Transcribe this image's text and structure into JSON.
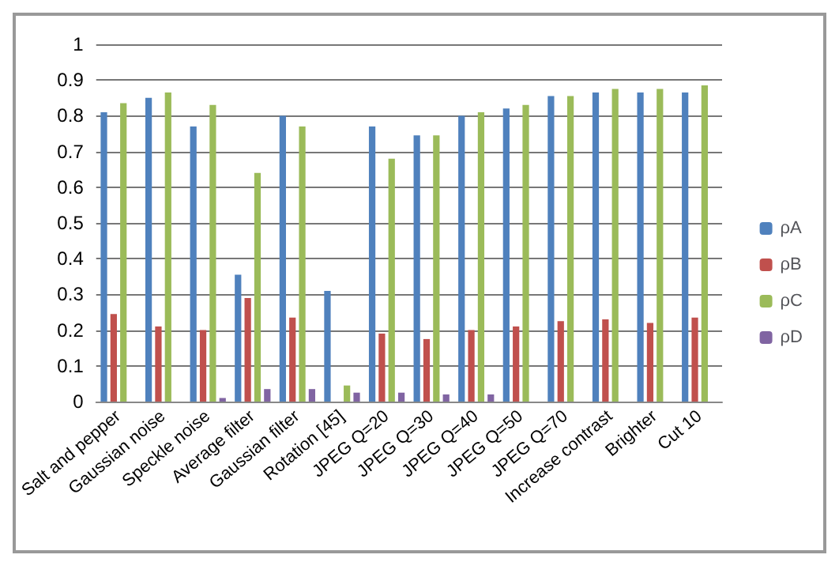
{
  "chart_data": {
    "type": "bar",
    "categories": [
      "Salt and pepper",
      "Gaussian noise",
      "Speckle noise",
      "Average filter",
      "Gaussian filter",
      "Rotation [45]",
      "JPEG Q=20",
      "JPEG Q=30",
      "JPEG Q=40",
      "JPEG Q=50",
      "JPEG Q=70",
      "Increase contrast",
      "Brighter",
      "Cut 10"
    ],
    "series": [
      {
        "name": "ρA",
        "color": "#4f81bd",
        "values": [
          0.81,
          0.85,
          0.77,
          0.355,
          0.8,
          0.31,
          0.77,
          0.745,
          0.8,
          0.82,
          0.855,
          0.865,
          0.865,
          0.865
        ]
      },
      {
        "name": "ρB",
        "color": "#c0504d",
        "values": [
          0.245,
          0.21,
          0.2,
          0.29,
          0.235,
          0,
          0.19,
          0.175,
          0.2,
          0.21,
          0.225,
          0.23,
          0.22,
          0.235
        ]
      },
      {
        "name": "ρC",
        "color": "#9bbb59",
        "values": [
          0.835,
          0.865,
          0.83,
          0.64,
          0.77,
          0.045,
          0.68,
          0.745,
          0.81,
          0.83,
          0.855,
          0.875,
          0.875,
          0.885
        ]
      },
      {
        "name": "ρD",
        "color": "#8064a2",
        "values": [
          0,
          0,
          0.01,
          0.035,
          0.035,
          0.025,
          0.025,
          0.02,
          0.02,
          0,
          0,
          0,
          0,
          0
        ]
      }
    ],
    "ylim": [
      0,
      1
    ],
    "yticks": [
      0,
      0.1,
      0.2,
      0.3,
      0.4,
      0.5,
      0.6,
      0.7,
      0.8,
      0.9,
      1
    ],
    "grid": "y",
    "legend": "right"
  }
}
